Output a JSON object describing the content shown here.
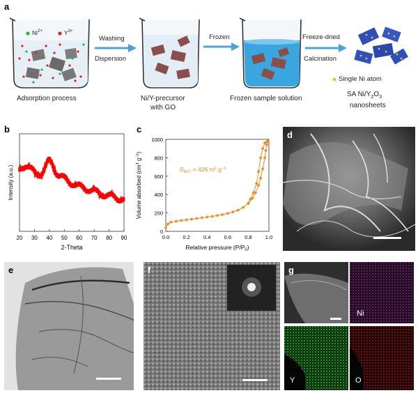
{
  "panels": {
    "a": {
      "label": "a",
      "legend_ni": "Ni",
      "legend_ni_sup": "2+",
      "legend_y": "Y",
      "legend_y_sup": "3+",
      "arrow1_top": "Washing",
      "arrow1_bottom": "Dispersion",
      "arrow2_top": "Frozen",
      "arrow3_top": "Freeze-dried",
      "arrow3_bottom": "Calcination",
      "caption1": "Adsorption process",
      "caption2_line1": "Ni/Y-precursor",
      "caption2_line2": "with GO",
      "caption3": "Frozen sample solution",
      "single_atom": "Single Ni atom",
      "product_line1": "SA Ni/Y",
      "product_sub1": "2",
      "product_mid": "O",
      "product_sub2": "3",
      "product_line2": "nanosheets"
    },
    "b": {
      "label": "b"
    },
    "c": {
      "label": "c"
    },
    "d": {
      "label": "d"
    },
    "e": {
      "label": "e"
    },
    "f": {
      "label": "f"
    },
    "g": {
      "label": "g",
      "map_ni": "Ni",
      "map_y": "Y",
      "map_o": "O"
    }
  },
  "colors": {
    "arrow": "#4aa3d8",
    "ni_dot": "#2fae49",
    "y_dot": "#e02020",
    "xrd": "#ff0000",
    "bet": "#f08a1e",
    "nanosheet": "#8a4f4a",
    "frozen": "#3aa6e0"
  },
  "chart_data": [
    {
      "id": "b",
      "type": "line",
      "xlabel": "2-Theta",
      "ylabel": "Intensity (a.u.)",
      "xlim": [
        20,
        90
      ],
      "xticks": [
        20,
        30,
        40,
        50,
        60,
        70,
        80,
        90
      ],
      "series": [
        {
          "x": [
            20,
            22,
            24,
            26,
            28,
            30,
            32,
            34,
            36,
            38,
            40,
            42,
            44,
            46,
            48,
            50,
            52,
            54,
            56,
            58,
            60,
            62,
            64,
            66,
            68,
            70,
            72,
            74,
            76,
            78,
            80,
            82,
            84,
            86,
            88,
            90
          ],
          "y": [
            0.62,
            0.66,
            0.68,
            0.67,
            0.63,
            0.6,
            0.58,
            0.59,
            0.62,
            0.68,
            0.72,
            0.69,
            0.62,
            0.58,
            0.56,
            0.54,
            0.52,
            0.5,
            0.49,
            0.47,
            0.46,
            0.45,
            0.44,
            0.43,
            0.42,
            0.41,
            0.4,
            0.39,
            0.38,
            0.37,
            0.36,
            0.36,
            0.35,
            0.34,
            0.33,
            0.32
          ]
        }
      ]
    },
    {
      "id": "c",
      "type": "line",
      "xlabel": "Relative pressure (P/P",
      "xlabel_sub": "0",
      "xlabel_end": ")",
      "ylabel": "Volume absorbed (cm",
      "ylabel_sup": "3",
      "ylabel_mid": " g",
      "ylabel_sup2": "−1",
      "ylabel_end": ")",
      "annotation": "S",
      "annotation_sub": "BET",
      "annotation_rest": " = 426 m",
      "annotation_sup": "2",
      "annotation_rest2": " g",
      "annotation_sup2": "−1",
      "xlim": [
        0.0,
        1.0
      ],
      "ylim": [
        0,
        1000
      ],
      "xticks": [
        "0.0",
        "0.2",
        "0.4",
        "0.6",
        "0.8",
        "1.0"
      ],
      "yticks": [
        "0",
        "200",
        "400",
        "600",
        "800",
        "1000"
      ],
      "series": [
        {
          "name": "adsorption",
          "x": [
            0.0,
            0.02,
            0.05,
            0.1,
            0.15,
            0.2,
            0.25,
            0.3,
            0.35,
            0.4,
            0.45,
            0.5,
            0.55,
            0.6,
            0.65,
            0.7,
            0.75,
            0.8,
            0.84,
            0.87,
            0.9,
            0.92,
            0.94,
            0.96,
            0.97,
            0.98,
            0.99
          ],
          "y": [
            40,
            80,
            100,
            110,
            118,
            125,
            132,
            140,
            148,
            155,
            163,
            172,
            182,
            195,
            210,
            230,
            260,
            305,
            360,
            420,
            500,
            580,
            680,
            800,
            880,
            940,
            980
          ]
        },
        {
          "name": "desorption",
          "x": [
            0.99,
            0.98,
            0.96,
            0.94,
            0.92,
            0.9,
            0.88,
            0.85,
            0.82,
            0.8
          ],
          "y": [
            980,
            975,
            960,
            900,
            800,
            650,
            520,
            420,
            350,
            305
          ]
        }
      ]
    }
  ]
}
